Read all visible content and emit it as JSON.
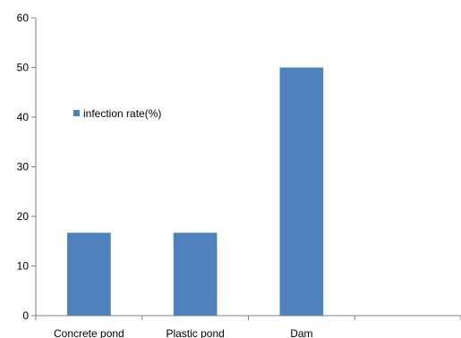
{
  "chart_data": {
    "type": "bar",
    "categories": [
      "Concrete pond",
      "Plastic pond",
      "Dam",
      ""
    ],
    "series": [
      {
        "name": "infection rate(%)",
        "values": [
          16.7,
          16.7,
          50,
          null
        ],
        "color": "#4F81BD"
      }
    ],
    "ylim": [
      0,
      60
    ],
    "yticks": [
      0,
      10,
      20,
      30,
      40,
      50,
      60
    ],
    "grid": false,
    "legend_placement": "middle-left",
    "axis_color": "#808080"
  }
}
